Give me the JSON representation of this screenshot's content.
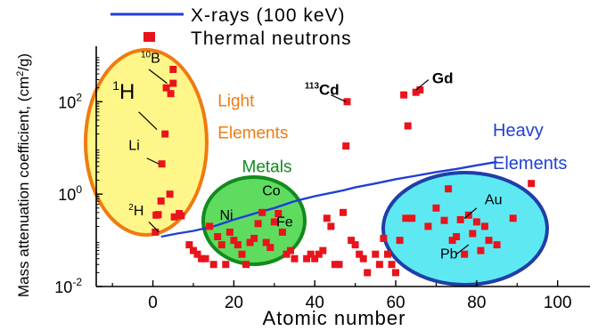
{
  "chart_data": {
    "type": "scatter",
    "xlabel": "Atomic number",
    "ylabel": "Mass attenuation coefficient, (cm",
    "ylabel_sup": "2",
    "ylabel_tail": "/g)",
    "xlim": [
      -14,
      108
    ],
    "ylim_log10": [
      -2,
      3.2
    ],
    "yscale": "log",
    "x_ticks": [
      0,
      20,
      40,
      60,
      80,
      100
    ],
    "x_tick_labels": [
      "0",
      "20",
      "40",
      "60",
      "80",
      "100"
    ],
    "y_ticks": [
      0.01,
      1,
      100
    ],
    "y_tick_labels": [
      {
        "base": "10",
        "exp": "-2"
      },
      {
        "base": "10",
        "exp": "0"
      },
      {
        "base": "10",
        "exp": "2"
      }
    ],
    "legend": {
      "position": "top",
      "entries": [
        {
          "label": "X-rays (100 keV)",
          "marker": "line",
          "color": "#1f3fd6"
        },
        {
          "label": "Thermal neutrons",
          "marker": "square",
          "color": "#e8141c"
        }
      ]
    },
    "series": [
      {
        "name": "X-rays (100 keV)",
        "kind": "line",
        "x": [
          2,
          6,
          10,
          15,
          20,
          26,
          30,
          35,
          40,
          47,
          50,
          55,
          60,
          65,
          70,
          75,
          80,
          85
        ],
        "y": [
          0.12,
          0.14,
          0.16,
          0.2,
          0.28,
          0.4,
          0.5,
          0.7,
          0.9,
          1.2,
          1.4,
          1.7,
          2.1,
          2.5,
          3.0,
          3.5,
          4.2,
          5.0
        ]
      },
      {
        "name": "Thermal neutrons",
        "kind": "scatter",
        "x": [
          0.6,
          0.8,
          1.3,
          2.0,
          2.2,
          3.0,
          3.3,
          4.2,
          4.4,
          5.0,
          5.0,
          5.3,
          6.5,
          7.0,
          9.0,
          10.0,
          11.0,
          12.0,
          13.0,
          14.0,
          15.0,
          16.0,
          17.0,
          18.0,
          19.0,
          20.0,
          21.0,
          22.0,
          23.0,
          24.0,
          25.0,
          26.0,
          27.0,
          28.0,
          29.0,
          30.0,
          31.0,
          32.0,
          33.0,
          34.0,
          35.0,
          38.0,
          39.0,
          40.0,
          41.0,
          42.0,
          43.0,
          44.0,
          45.0,
          46.0,
          47.0,
          47.7,
          48.0,
          49.0,
          50.0,
          51.0,
          52.0,
          53.0,
          55.0,
          56.0,
          57.0,
          58.0,
          59.0,
          60.0,
          61.0,
          62.0,
          62.5,
          63.0,
          64.0,
          65.0,
          66.0,
          68.0,
          70.0,
          72.0,
          73.0,
          74.0,
          75.0,
          76.0,
          77.0,
          78.0,
          79.0,
          80.0,
          81.0,
          82.0,
          83.0,
          85.0,
          89.0,
          93.5
        ],
        "y": [
          0.15,
          0.35,
          0.36,
          0.71,
          4.5,
          20.0,
          200.0,
          1.0,
          150.0,
          250.0,
          500.0,
          0.32,
          0.38,
          0.34,
          0.08,
          0.06,
          0.05,
          0.04,
          0.04,
          0.2,
          0.03,
          0.12,
          0.08,
          0.03,
          0.15,
          0.1,
          0.08,
          0.05,
          0.03,
          0.09,
          0.11,
          0.23,
          0.4,
          0.09,
          0.07,
          0.25,
          0.38,
          0.15,
          0.05,
          0.06,
          0.04,
          0.04,
          0.05,
          0.04,
          0.05,
          0.06,
          0.3,
          0.2,
          0.03,
          0.03,
          0.4,
          11.0,
          100.0,
          0.1,
          0.08,
          0.05,
          0.04,
          0.02,
          0.05,
          0.03,
          0.11,
          0.05,
          0.03,
          0.02,
          0.1,
          140.0,
          0.3,
          30.0,
          0.3,
          160.0,
          180.0,
          0.2,
          0.5,
          0.27,
          1.3,
          0.1,
          0.12,
          0.28,
          0.05,
          0.35,
          0.14,
          0.25,
          0.06,
          0.2,
          0.1,
          0.08,
          0.3,
          1.7
        ]
      }
    ],
    "annotations": [
      {
        "text": "Light",
        "color": "#f07b10",
        "x": 16,
        "y": 80
      },
      {
        "text": "Elements",
        "color": "#f07b10",
        "x": 16,
        "y": 16
      },
      {
        "text": "Metals",
        "color": "#138a1d",
        "x": 22,
        "y": 3.0
      },
      {
        "text": "Heavy",
        "color": "#1f3fd6",
        "x": 84,
        "y": 18
      },
      {
        "text": "Elements",
        "color": "#1f3fd6",
        "x": 84,
        "y": 3.5
      },
      {
        "text": "Gd",
        "color": "#000000",
        "x": 69,
        "y": 250
      },
      {
        "text": "Cd",
        "color": "#000000",
        "x": 37.5,
        "y": 140
      },
      {
        "text": "Co",
        "color": "#000000",
        "x": 27,
        "y": 0.95
      },
      {
        "text": "Ni",
        "color": "#000000",
        "x": 16.5,
        "y": 0.28
      },
      {
        "text": "Fe",
        "color": "#000000",
        "x": 30.5,
        "y": 0.2
      },
      {
        "text": "Au",
        "color": "#000000",
        "x": 82,
        "y": 0.6
      },
      {
        "text": "Pb",
        "color": "#000000",
        "x": 71,
        "y": 0.04
      },
      {
        "text": "B",
        "color": "#000000",
        "x": -3,
        "y": 700
      },
      {
        "text": "H",
        "color": "#000000",
        "x": -10,
        "y": 115
      },
      {
        "text": "Li",
        "color": "#000000",
        "x": -6,
        "y": 9
      },
      {
        "text": "H",
        "color": "#000000",
        "x": -6,
        "y": 0.35
      }
    ],
    "annotation_prefixes": {
      "Cd": "113",
      "B": "10",
      "H_light": "1",
      "H_heavy": "2"
    },
    "regions": [
      {
        "label": "Light Elements",
        "fill": "#fff68a",
        "stroke": "#f07b10"
      },
      {
        "label": "Metals",
        "fill": "#5fdc5f",
        "stroke": "#138a1d"
      },
      {
        "label": "Heavy Elements",
        "fill": "#5ee9f2",
        "stroke": "#1f3fa6"
      }
    ],
    "grid": false
  }
}
